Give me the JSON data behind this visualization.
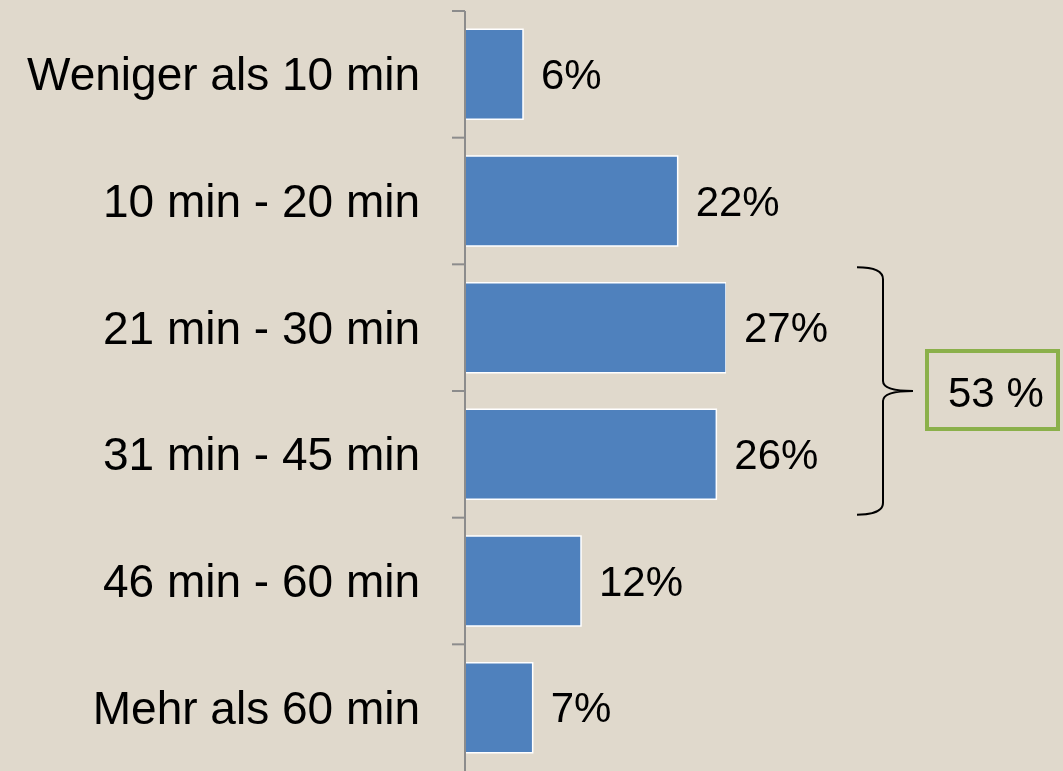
{
  "chart_data": {
    "type": "bar",
    "orientation": "horizontal",
    "categories": [
      "Weniger als 10 min",
      "10 min - 20 min",
      "21 min - 30 min",
      "31 min - 45 min",
      "46 min - 60 min",
      "Mehr als 60 min"
    ],
    "values": [
      6,
      22,
      27,
      26,
      12,
      7
    ],
    "color": "#4f81bd",
    "value_labels": [
      "6%",
      "22%",
      "27%",
      "26%",
      "12%",
      "7%"
    ],
    "annotations": [
      "53 %"
    ]
  }
}
